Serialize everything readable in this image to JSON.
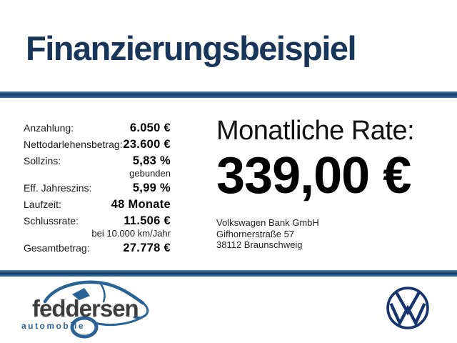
{
  "header": {
    "title": "Finanzierungsbeispiel"
  },
  "finance": {
    "rows": [
      {
        "label": "Anzahlung:",
        "value": "6.050 €"
      },
      {
        "label": "Nettodarlehensbetrag:",
        "value": "23.600 €"
      },
      {
        "label": "Sollzins:",
        "value": "5,83 %",
        "note": "gebunden"
      },
      {
        "label": "Eff. Jahreszins:",
        "value": "5,99 %"
      },
      {
        "label": "Laufzeit:",
        "value": "48 Monate"
      },
      {
        "label": "Schlussrate:",
        "value": "11.506 €",
        "note": "bei 10.000 km/Jahr"
      },
      {
        "label": "Gesamtbetrag:",
        "value": "27.778 €"
      }
    ]
  },
  "rate": {
    "heading": "Monatliche Rate:",
    "amount": "339,00 €"
  },
  "bank": {
    "lines": [
      "Volkswagen Bank GmbH",
      "Gifhornerstraße 57",
      "38112 Braunschweig"
    ]
  },
  "dealer": {
    "name": "feddersen",
    "subtitle": "automobile"
  },
  "brand": {
    "vw_logo": "vw-roundel"
  },
  "colors": {
    "navy": "#17365A",
    "bar_navy": "#173F66",
    "bar_blue": "#2E6DA4",
    "text_dark": "#1A1A1A",
    "dealer_gray": "#3D3D3D",
    "dealer_blue": "#2A6496",
    "vw_blue": "#16356E"
  }
}
